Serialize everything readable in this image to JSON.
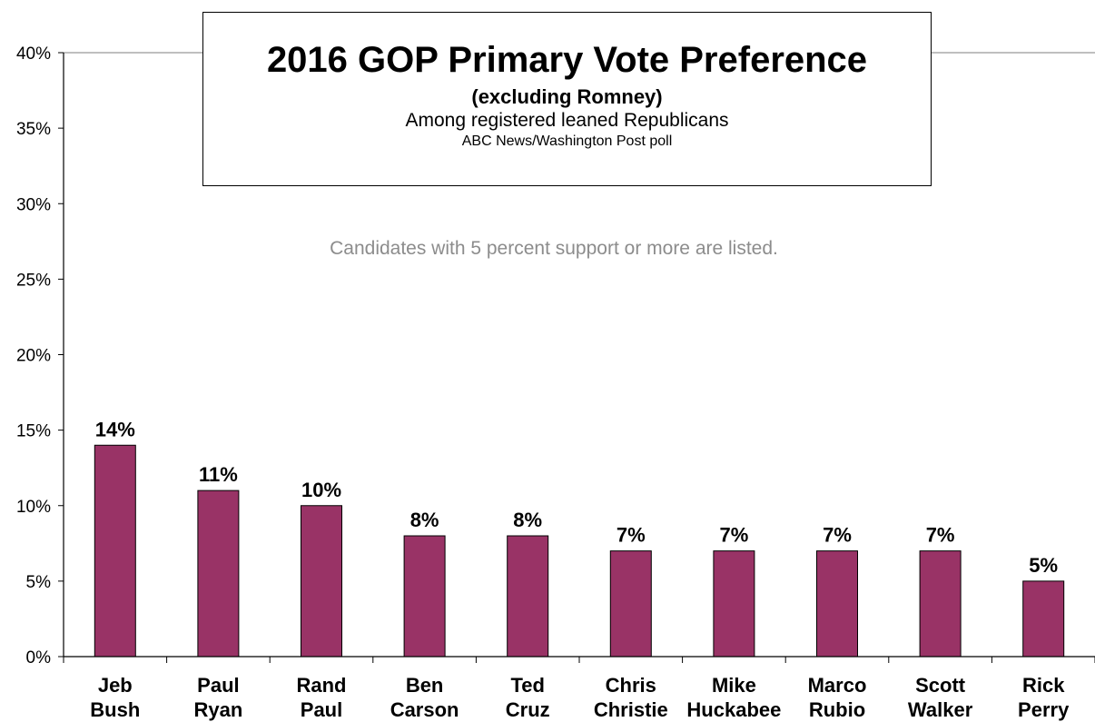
{
  "chart_data": {
    "type": "bar",
    "title": "2016 GOP Primary Vote Preference",
    "subtitle": "(excluding Romney)",
    "subtitle2": "Among registered leaned Republicans",
    "source": "ABC News/Washington  Post poll",
    "annotation": "Candidates with 5 percent support or more are listed.",
    "categories": [
      [
        "Jeb",
        "Bush"
      ],
      [
        "Paul",
        "Ryan"
      ],
      [
        "Rand",
        "Paul"
      ],
      [
        "Ben",
        "Carson"
      ],
      [
        "Ted",
        "Cruz"
      ],
      [
        "Chris",
        "Christie"
      ],
      [
        "Mike",
        "Huckabee"
      ],
      [
        "Marco",
        "Rubio"
      ],
      [
        "Scott",
        "Walker"
      ],
      [
        "Rick",
        "Perry"
      ]
    ],
    "values": [
      14,
      11,
      10,
      8,
      8,
      7,
      7,
      7,
      7,
      5
    ],
    "data_labels": [
      "14%",
      "11%",
      "10%",
      "8%",
      "8%",
      "7%",
      "7%",
      "7%",
      "7%",
      "5%"
    ],
    "ylim": [
      0,
      40
    ],
    "yticks": [
      "0%",
      "5%",
      "10%",
      "15%",
      "20%",
      "25%",
      "30%",
      "35%",
      "40%"
    ],
    "bar_color": "#993366",
    "grid": "top line only",
    "xlabel": "",
    "ylabel": ""
  }
}
